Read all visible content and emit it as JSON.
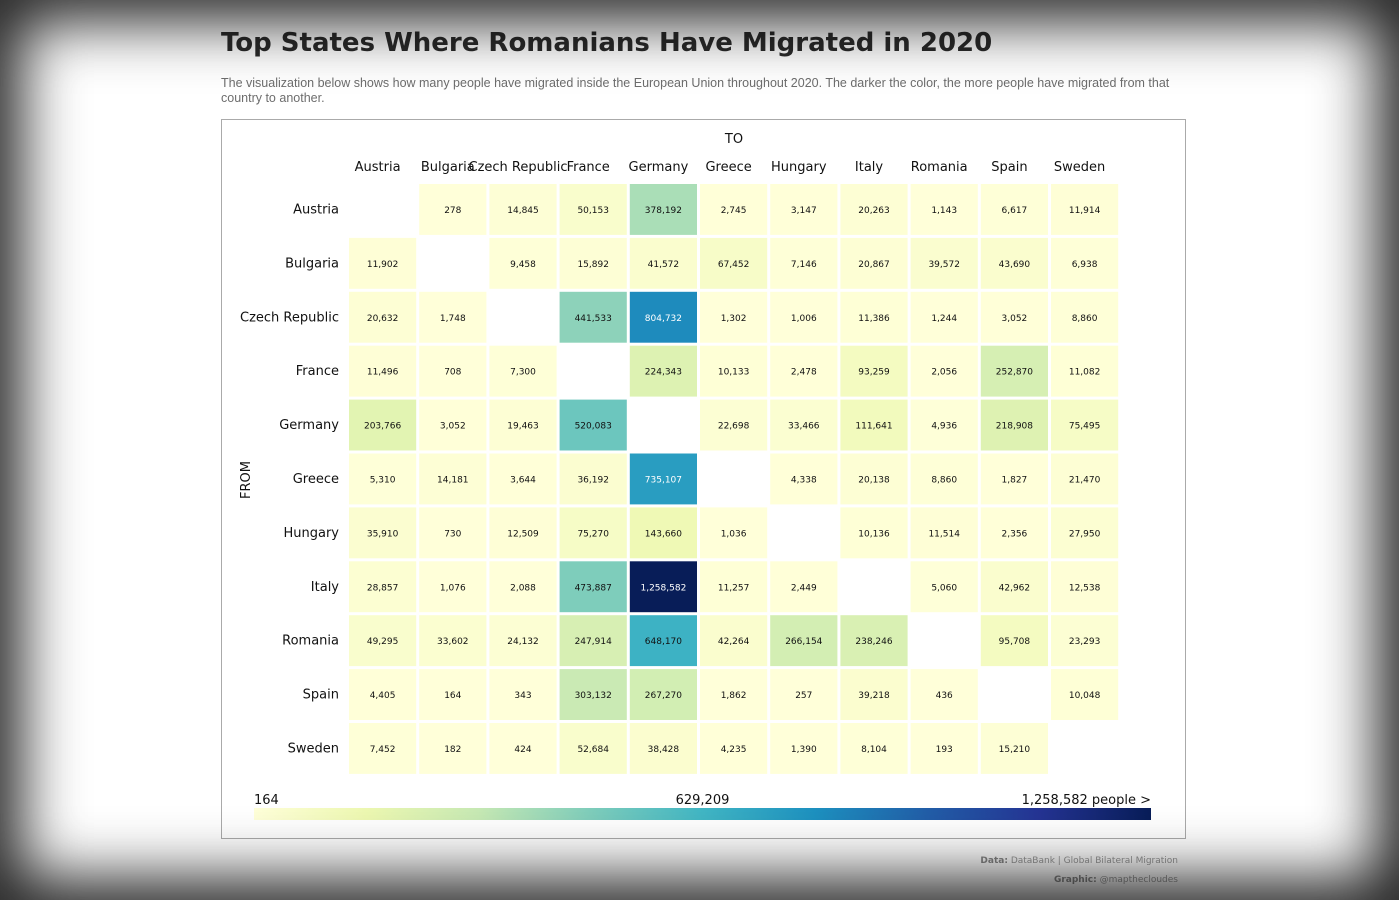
{
  "header": {
    "title": "Top States Where Romanians Have Migrated in 2020",
    "subtitle": "The visualization below shows how many people have migrated inside the European Union throughout 2020. The darker the color, the more people have migrated from that country to another."
  },
  "chart_data": {
    "type": "heatmap",
    "xlabel": "TO",
    "ylabel": "FROM",
    "x_categories": [
      "Austria",
      "Bulgaria",
      "Czech Republic",
      "France",
      "Germany",
      "Greece",
      "Hungary",
      "Italy",
      "Romania",
      "Spain",
      "Sweden"
    ],
    "y_categories": [
      "Austria",
      "Bulgaria",
      "Czech Republic",
      "France",
      "Germany",
      "Greece",
      "Hungary",
      "Italy",
      "Romania",
      "Spain",
      "Sweden"
    ],
    "values": [
      [
        null,
        278,
        14845,
        50153,
        378192,
        2745,
        3147,
        20263,
        1143,
        6617,
        11914
      ],
      [
        11902,
        null,
        9458,
        15892,
        41572,
        67452,
        7146,
        20867,
        39572,
        43690,
        6938
      ],
      [
        20632,
        1748,
        null,
        441533,
        804732,
        1302,
        1006,
        11386,
        1244,
        3052,
        8860
      ],
      [
        11496,
        708,
        7300,
        null,
        224343,
        10133,
        2478,
        93259,
        2056,
        252870,
        11082
      ],
      [
        203766,
        3052,
        19463,
        520083,
        null,
        22698,
        33466,
        111641,
        4936,
        218908,
        75495
      ],
      [
        5310,
        14181,
        3644,
        36192,
        735107,
        null,
        4338,
        20138,
        8860,
        1827,
        21470
      ],
      [
        35910,
        730,
        12509,
        75270,
        143660,
        1036,
        null,
        10136,
        11514,
        2356,
        27950
      ],
      [
        28857,
        1076,
        2088,
        473887,
        1258582,
        11257,
        2449,
        null,
        5060,
        42962,
        12538
      ],
      [
        49295,
        33602,
        24132,
        247914,
        648170,
        42264,
        266154,
        238246,
        null,
        95708,
        23293
      ],
      [
        4405,
        164,
        343,
        303132,
        267270,
        1862,
        257,
        39218,
        436,
        null,
        10048
      ],
      [
        7452,
        182,
        424,
        52684,
        38428,
        4235,
        1390,
        8104,
        193,
        15210,
        null
      ]
    ],
    "color_scale": {
      "min": 164,
      "mid": 629209,
      "max": 1258582,
      "min_label": "164",
      "mid_label": "629,209",
      "max_label": "1,258,582 people >",
      "colors": [
        "#ffffd9",
        "#edf8b1",
        "#c7e9b4",
        "#7fcdbb",
        "#41b6c4",
        "#1d91c0",
        "#225ea8",
        "#253494",
        "#081d58"
      ]
    }
  },
  "footer": {
    "data_label": "Data:",
    "data_source": "DataBank | Global Bilateral Migration",
    "graphic_label": "Graphic:",
    "graphic_author": "@mapthecloudes"
  }
}
